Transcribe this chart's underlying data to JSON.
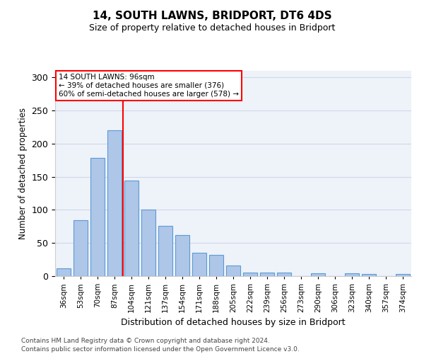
{
  "title": "14, SOUTH LAWNS, BRIDPORT, DT6 4DS",
  "subtitle": "Size of property relative to detached houses in Bridport",
  "xlabel": "Distribution of detached houses by size in Bridport",
  "ylabel": "Number of detached properties",
  "bar_labels": [
    "36sqm",
    "53sqm",
    "70sqm",
    "87sqm",
    "104sqm",
    "121sqm",
    "137sqm",
    "154sqm",
    "171sqm",
    "188sqm",
    "205sqm",
    "222sqm",
    "239sqm",
    "256sqm",
    "273sqm",
    "290sqm",
    "306sqm",
    "323sqm",
    "340sqm",
    "357sqm",
    "374sqm"
  ],
  "bar_values": [
    12,
    84,
    178,
    220,
    144,
    100,
    76,
    62,
    35,
    32,
    16,
    5,
    5,
    5,
    0,
    4,
    0,
    4,
    3,
    0,
    3
  ],
  "bar_color": "#aec6e8",
  "bar_edge_color": "#5b9bd5",
  "vline_x": 3.5,
  "vline_color": "red",
  "annotation_title": "14 SOUTH LAWNS: 96sqm",
  "annotation_line1": "← 39% of detached houses are smaller (376)",
  "annotation_line2": "60% of semi-detached houses are larger (578) →",
  "annotation_box_color": "white",
  "annotation_box_edge_color": "red",
  "ylim": [
    0,
    310
  ],
  "yticks": [
    0,
    50,
    100,
    150,
    200,
    250,
    300
  ],
  "footer1": "Contains HM Land Registry data © Crown copyright and database right 2024.",
  "footer2": "Contains public sector information licensed under the Open Government Licence v3.0.",
  "grid_color": "#d0d8e8",
  "background_color": "#eef2f9"
}
